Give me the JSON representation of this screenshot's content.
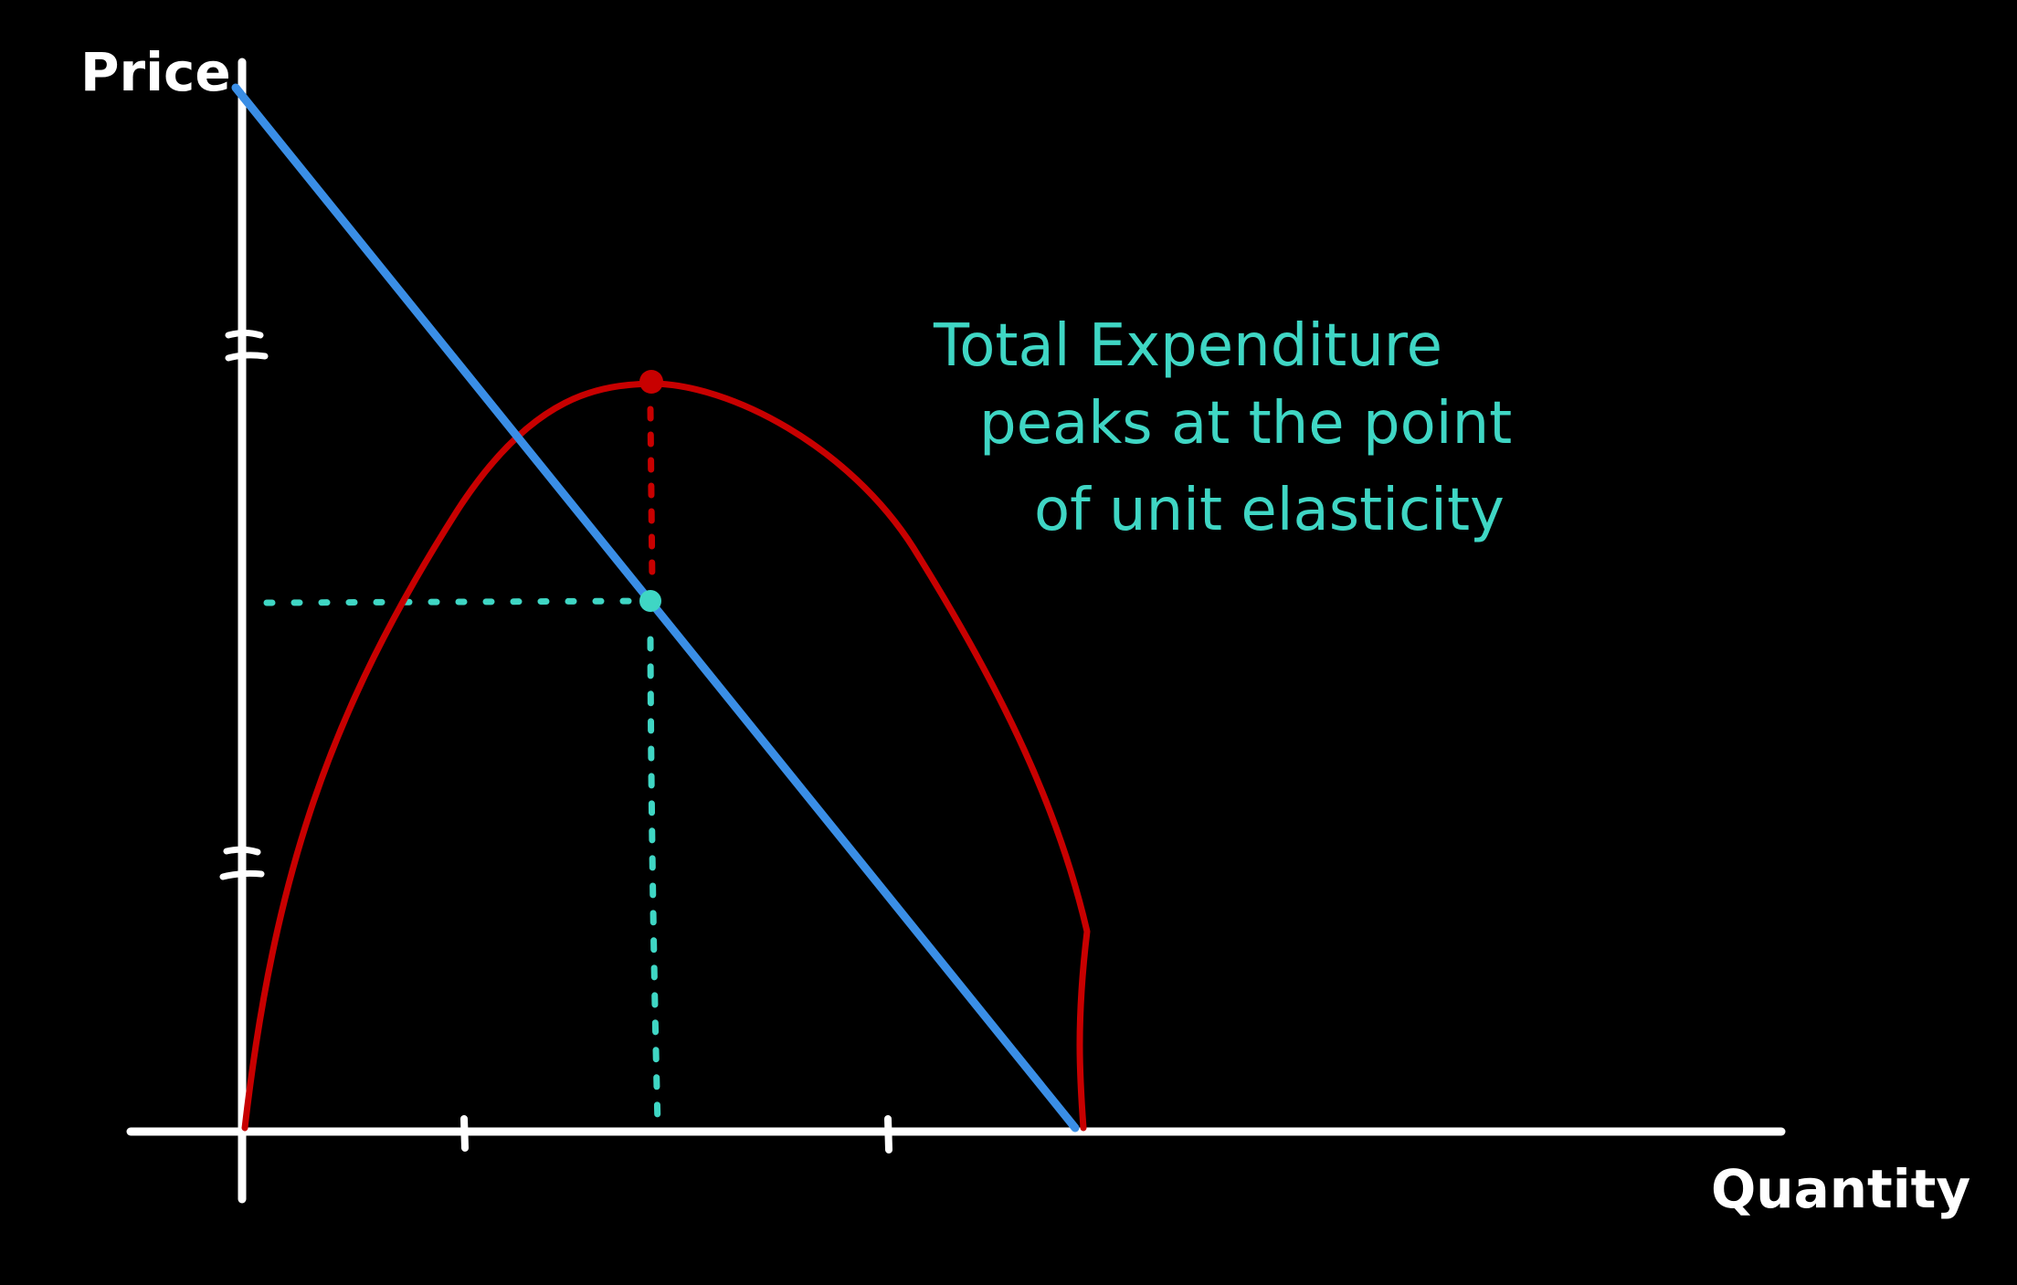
{
  "axes": {
    "y_label": "Price",
    "x_label": "Quantity"
  },
  "annotation": {
    "lines": [
      "Total Expenditure",
      "peaks at the point",
      "of unit elasticity"
    ]
  },
  "colors": {
    "background": "#000000",
    "axis": "#ffffff",
    "demand_line": "#3a8ee6",
    "total_expenditure_curve": "#c80000",
    "guide_lines": "#3fd6c4",
    "annotation_text": "#3fd6c4"
  }
}
